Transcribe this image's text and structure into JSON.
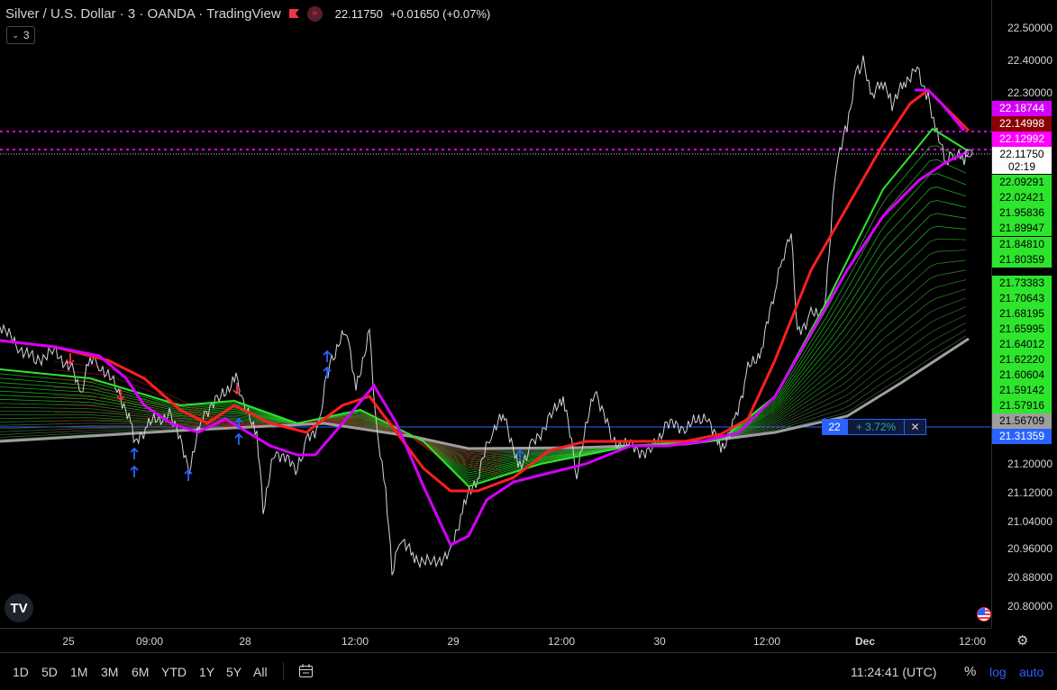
{
  "header": {
    "title": "Silver / U.S. Dollar · 3 · OANDA · TradingView",
    "indicator_icon": "≈",
    "price": "22.11750",
    "change": "+0.01650 (+0.07%)"
  },
  "interval_button": {
    "label": "3",
    "icon": "chevron-down-icon"
  },
  "price_axis": {
    "ticks": [
      "22.50000",
      "22.40000",
      "22.30000",
      "21.20000",
      "21.12000",
      "21.04000",
      "20.96000",
      "20.88000",
      "20.80000"
    ]
  },
  "price_labels": [
    {
      "text": "22.18744",
      "color": "#d500f9"
    },
    {
      "text": "22.14998",
      "color": "#8b0000"
    },
    {
      "text": "22.12992",
      "color": "#ff00ff"
    },
    {
      "text": "22.09291",
      "color": "#2ee52e"
    },
    {
      "text": "22.02421",
      "color": "#2ee52e"
    },
    {
      "text": "21.95836",
      "color": "#2ee52e"
    },
    {
      "text": "21.89947",
      "color": "#2ee52e"
    },
    {
      "text": "21.84810",
      "color": "#2ee52e"
    },
    {
      "text": "21.80359",
      "color": "#2ee52e"
    },
    {
      "text": "21.73383",
      "color": "#2ee52e"
    },
    {
      "text": "21.70643",
      "color": "#2ee52e"
    },
    {
      "text": "21.68195",
      "color": "#2ee52e"
    },
    {
      "text": "21.65995",
      "color": "#2ee52e"
    },
    {
      "text": "21.64012",
      "color": "#2ee52e"
    },
    {
      "text": "21.62220",
      "color": "#2ee52e"
    },
    {
      "text": "21.60604",
      "color": "#2ee52e"
    },
    {
      "text": "21.59142",
      "color": "#2ee52e"
    },
    {
      "text": "21.57916",
      "color": "#2ee52e"
    },
    {
      "text": "21.56709",
      "color": "#9e9e9e"
    },
    {
      "text": "21.31359",
      "color": "#2962ff"
    }
  ],
  "current_price": {
    "price": "22.11750",
    "countdown": "02:19"
  },
  "time_axis": {
    "ticks": [
      {
        "label": "25",
        "bold": false
      },
      {
        "label": "09:00",
        "bold": false
      },
      {
        "label": "28",
        "bold": false
      },
      {
        "label": "12:00",
        "bold": false
      },
      {
        "label": "29",
        "bold": false
      },
      {
        "label": "12:00",
        "bold": false
      },
      {
        "label": "30",
        "bold": false
      },
      {
        "label": "12:00",
        "bold": false
      },
      {
        "label": "Dec",
        "bold": true
      },
      {
        "label": "12:00",
        "bold": false
      }
    ]
  },
  "measure_tool": {
    "value": "22",
    "change": "+ 3.72%",
    "close": "✕"
  },
  "bottom_bar": {
    "ranges": [
      "1D",
      "5D",
      "1M",
      "3M",
      "6M",
      "YTD",
      "1Y",
      "5Y",
      "All"
    ],
    "compare_icon": "calendar-range-icon",
    "clock": "11:24:41 (UTC)",
    "percent": "%",
    "log": "log",
    "auto": "auto"
  },
  "logo": "TV",
  "colors": {
    "background": "#000000",
    "price_line": "#d1d4dc",
    "ema_fast": "#ff1f1f",
    "ema_medium": "#d500f9",
    "ema_green": "#2ee52e",
    "ema_slow": "#9e9e9e",
    "accent": "#2962ff",
    "signal_up": "#2962ff",
    "signal_down": "#f23645"
  }
}
